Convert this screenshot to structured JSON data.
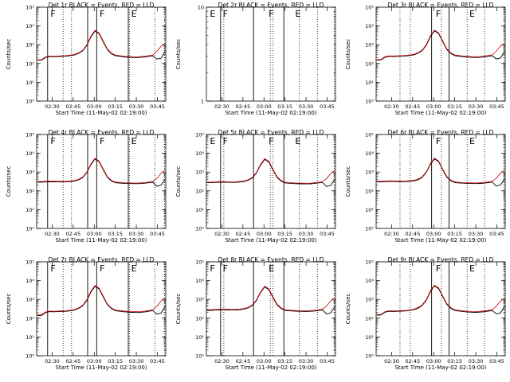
{
  "chart_data": [
    {
      "type": "line",
      "title": "Det 1r BLACK = Events, RED = LLD",
      "xlabel": "Start Time (11-May-02 02:19:00)",
      "ylabel": "Counts/sec",
      "yscale": "log",
      "ylim": [
        1,
        100000
      ],
      "ytick_labels": [
        "10⁰",
        "10¹",
        "10²",
        "10³",
        "10⁴",
        "10⁵"
      ],
      "x_tick_labels": [
        "02:30",
        "02:45",
        "03:00",
        "03:15",
        "03:30",
        "03:45"
      ],
      "segment_markers": [
        "F",
        "F",
        "E"
      ],
      "series": [
        {
          "color": "#000000",
          "values": [
            150,
            150,
            210,
            235,
            230,
            235,
            240,
            245,
            262,
            285,
            345,
            470,
            900,
            2600,
            5300,
            3800,
            1400,
            540,
            330,
            255,
            240,
            225,
            215,
            210,
            205,
            210,
            220,
            238,
            258,
            172,
            190,
            430
          ]
        },
        {
          "color": "#d40000",
          "values": [
            160,
            160,
            225,
            250,
            245,
            250,
            255,
            262,
            280,
            305,
            370,
            505,
            980,
            2900,
            5800,
            4200,
            1550,
            590,
            360,
            278,
            262,
            246,
            236,
            230,
            226,
            232,
            244,
            262,
            285,
            440,
            820,
            1200
          ]
        }
      ]
    },
    {
      "type": "line",
      "title": "Det 2r BLACK = Events, RED = LLD",
      "xlabel": "Start Time (11-May-02 02:19:00)",
      "ylabel": "Counts/sec",
      "yscale": "log",
      "ylim": [
        1,
        10
      ],
      "ytick_labels": [
        "1",
        "10"
      ],
      "x_tick_labels": [
        "02:30",
        "02:45",
        "03:00",
        "03:15",
        "03:30",
        "03:45"
      ],
      "segment_markers": [
        "E",
        "F",
        "F",
        "E"
      ],
      "series": []
    },
    {
      "type": "line",
      "title": "Det 3r BLACK = Events, RED = LLD",
      "xlabel": "Start Time (11-May-02 02:19:00)",
      "ylabel": "Counts/sec",
      "yscale": "log",
      "ylim": [
        1,
        100000
      ],
      "ytick_labels": [
        "10⁰",
        "10¹",
        "10²",
        "10³",
        "10⁴",
        "10⁵"
      ],
      "x_tick_labels": [
        "02:30",
        "02:45",
        "03:00",
        "03:15",
        "03:30",
        "03:45"
      ],
      "segment_markers": [
        "F",
        "E"
      ],
      "series": [
        {
          "color": "#000000",
          "values": [
            150,
            155,
            215,
            240,
            235,
            240,
            245,
            250,
            268,
            290,
            350,
            480,
            920,
            2700,
            5500,
            3900,
            1450,
            550,
            335,
            258,
            243,
            228,
            218,
            212,
            208,
            213,
            223,
            240,
            260,
            175,
            195,
            440
          ]
        },
        {
          "color": "#d40000",
          "values": [
            162,
            165,
            230,
            255,
            250,
            255,
            260,
            268,
            286,
            310,
            376,
            515,
            1000,
            3000,
            6000,
            4300,
            1600,
            600,
            365,
            282,
            265,
            250,
            240,
            234,
            230,
            236,
            248,
            266,
            290,
            450,
            840,
            1250
          ]
        }
      ]
    },
    {
      "type": "line",
      "title": "Det 4r BLACK = Events, RED = LLD",
      "xlabel": "Start Time (11-May-02 02:19:00)",
      "ylabel": "Counts/sec",
      "yscale": "log",
      "ylim": [
        1,
        100000
      ],
      "ytick_labels": [
        "10⁰",
        "10¹",
        "10²",
        "10³",
        "10⁴",
        "10⁵"
      ],
      "x_tick_labels": [
        "02:30",
        "02:45",
        "03:00",
        "03:15",
        "03:30",
        "03:45"
      ],
      "segment_markers": [
        "F",
        "F",
        "E"
      ],
      "series": [
        {
          "color": "#000000",
          "values": [
            290,
            290,
            300,
            305,
            302,
            300,
            298,
            300,
            312,
            330,
            380,
            500,
            930,
            2500,
            4900,
            3500,
            1300,
            520,
            330,
            268,
            258,
            250,
            245,
            242,
            240,
            244,
            252,
            268,
            290,
            175,
            200,
            420
          ]
        },
        {
          "color": "#d40000",
          "values": [
            310,
            312,
            322,
            328,
            325,
            322,
            320,
            322,
            335,
            355,
            408,
            540,
            1000,
            2750,
            5400,
            3850,
            1430,
            570,
            360,
            292,
            280,
            270,
            265,
            262,
            260,
            265,
            275,
            292,
            315,
            460,
            850,
            1300
          ]
        }
      ]
    },
    {
      "type": "line",
      "title": "Det 5r BLACK = Events, RED = LLD",
      "xlabel": "Start Time (11-May-02 02:19:00)",
      "ylabel": "Counts/sec",
      "yscale": "log",
      "ylim": [
        1,
        100000
      ],
      "ytick_labels": [
        "10⁰",
        "10¹",
        "10²",
        "10³",
        "10⁴",
        "10⁵"
      ],
      "x_tick_labels": [
        "02:30",
        "02:45",
        "03:00",
        "03:15",
        "03:30",
        "03:45"
      ],
      "segment_markers": [
        "E",
        "F",
        "F",
        "E"
      ],
      "series": [
        {
          "color": "#000000",
          "values": [
            270,
            270,
            280,
            288,
            285,
            283,
            280,
            282,
            295,
            315,
            365,
            480,
            900,
            2400,
            4700,
            3400,
            1270,
            510,
            325,
            262,
            252,
            244,
            238,
            235,
            233,
            237,
            245,
            262,
            282,
            170,
            195,
            410
          ]
        },
        {
          "color": "#d40000",
          "values": [
            290,
            292,
            302,
            310,
            306,
            304,
            302,
            304,
            318,
            340,
            392,
            520,
            970,
            2650,
            5200,
            3750,
            1400,
            560,
            355,
            286,
            274,
            265,
            258,
            255,
            253,
            258,
            268,
            286,
            308,
            450,
            830,
            1250
          ]
        }
      ]
    },
    {
      "type": "line",
      "title": "Det 6r BLACK = Events, RED = LLD",
      "xlabel": "Start Time (11-May-02 02:19:00)",
      "ylabel": "Counts/sec",
      "yscale": "log",
      "ylim": [
        1,
        100000
      ],
      "ytick_labels": [
        "10⁰",
        "10¹",
        "10²",
        "10³",
        "10⁴",
        "10⁵"
      ],
      "x_tick_labels": [
        "02:30",
        "02:45",
        "03:00",
        "03:15",
        "03:30",
        "03:45"
      ],
      "segment_markers": [
        "F",
        "E"
      ],
      "series": [
        {
          "color": "#000000",
          "values": [
            300,
            300,
            310,
            315,
            312,
            310,
            308,
            310,
            322,
            340,
            390,
            515,
            950,
            2550,
            5000,
            3550,
            1320,
            530,
            335,
            272,
            262,
            254,
            248,
            245,
            243,
            247,
            255,
            272,
            295,
            178,
            205,
            430
          ]
        },
        {
          "color": "#d40000",
          "values": [
            322,
            324,
            334,
            340,
            337,
            334,
            332,
            334,
            347,
            366,
            420,
            555,
            1020,
            2800,
            5500,
            3900,
            1450,
            580,
            365,
            296,
            284,
            274,
            268,
            265,
            263,
            268,
            278,
            296,
            320,
            465,
            860,
            1320
          ]
        }
      ]
    },
    {
      "type": "line",
      "title": "Det 7r BLACK = Events, RED = LLD",
      "xlabel": "Start Time (11-May-02 02:19:00)",
      "ylabel": "Counts/sec",
      "yscale": "log",
      "ylim": [
        1,
        100000
      ],
      "ytick_labels": [
        "10⁰",
        "10¹",
        "10²",
        "10³",
        "10⁴",
        "10⁵"
      ],
      "x_tick_labels": [
        "02:30",
        "02:45",
        "03:00",
        "03:15",
        "03:30",
        "03:45"
      ],
      "segment_markers": [
        "F",
        "F",
        "E"
      ],
      "series": [
        {
          "color": "#000000",
          "values": [
            140,
            140,
            200,
            222,
            218,
            222,
            226,
            232,
            248,
            270,
            328,
            450,
            860,
            2450,
            5000,
            3600,
            1330,
            520,
            318,
            246,
            232,
            218,
            209,
            204,
            200,
            205,
            214,
            232,
            252,
            168,
            185,
            420
          ]
        },
        {
          "color": "#d40000",
          "values": [
            150,
            152,
            214,
            238,
            233,
            238,
            242,
            248,
            266,
            290,
            352,
            485,
            940,
            2750,
            5500,
            4000,
            1480,
            570,
            348,
            270,
            255,
            240,
            230,
            224,
            220,
            226,
            238,
            256,
            278,
            430,
            800,
            1180
          ]
        }
      ]
    },
    {
      "type": "line",
      "title": "Det 8r BLACK = Events, RED = LLD",
      "xlabel": "Start Time (11-May-02 02:19:00)",
      "ylabel": "Counts/sec",
      "yscale": "log",
      "ylim": [
        1,
        100000
      ],
      "ytick_labels": [
        "10⁰",
        "10¹",
        "10²",
        "10³",
        "10⁴",
        "10⁵"
      ],
      "x_tick_labels": [
        "02:30",
        "02:45",
        "03:00",
        "03:15",
        "03:30",
        "03:45"
      ],
      "segment_markers": [
        "F",
        "F",
        "E"
      ],
      "series": [
        {
          "color": "#000000",
          "values": [
            260,
            260,
            270,
            278,
            275,
            273,
            270,
            272,
            285,
            305,
            355,
            470,
            880,
            2350,
            4600,
            3300,
            1240,
            500,
            318,
            256,
            246,
            238,
            232,
            229,
            227,
            231,
            239,
            256,
            276,
            168,
            192,
            405
          ]
        },
        {
          "color": "#d40000",
          "values": [
            280,
            282,
            292,
            300,
            296,
            294,
            292,
            294,
            308,
            330,
            382,
            510,
            950,
            2600,
            5100,
            3650,
            1370,
            550,
            348,
            280,
            268,
            259,
            252,
            249,
            247,
            252,
            262,
            280,
            302,
            440,
            820,
            1230
          ]
        }
      ]
    },
    {
      "type": "line",
      "title": "Det 9r BLACK = Events, RED = LLD",
      "xlabel": "Start Time (11-May-02 02:19:00)",
      "ylabel": "Counts/sec",
      "yscale": "log",
      "ylim": [
        1,
        100000
      ],
      "ytick_labels": [
        "10⁰",
        "10¹",
        "10²",
        "10³",
        "10⁴",
        "10⁵"
      ],
      "x_tick_labels": [
        "02:30",
        "02:45",
        "03:00",
        "03:15",
        "03:30",
        "03:45"
      ],
      "segment_markers": [
        "F",
        "E"
      ],
      "series": [
        {
          "color": "#000000",
          "values": [
            145,
            148,
            208,
            232,
            228,
            232,
            236,
            242,
            258,
            280,
            340,
            465,
            890,
            2550,
            5200,
            3750,
            1380,
            535,
            328,
            252,
            238,
            223,
            213,
            208,
            204,
            209,
            218,
            236,
            256,
            170,
            188,
            425
          ]
        },
        {
          "color": "#d40000",
          "values": [
            156,
            158,
            222,
            247,
            242,
            247,
            252,
            258,
            276,
            300,
            365,
            500,
            970,
            2850,
            5700,
            4150,
            1530,
            585,
            358,
            276,
            260,
            244,
            234,
            228,
            224,
            230,
            242,
            260,
            282,
            435,
            810,
            1190
          ]
        }
      ]
    }
  ]
}
